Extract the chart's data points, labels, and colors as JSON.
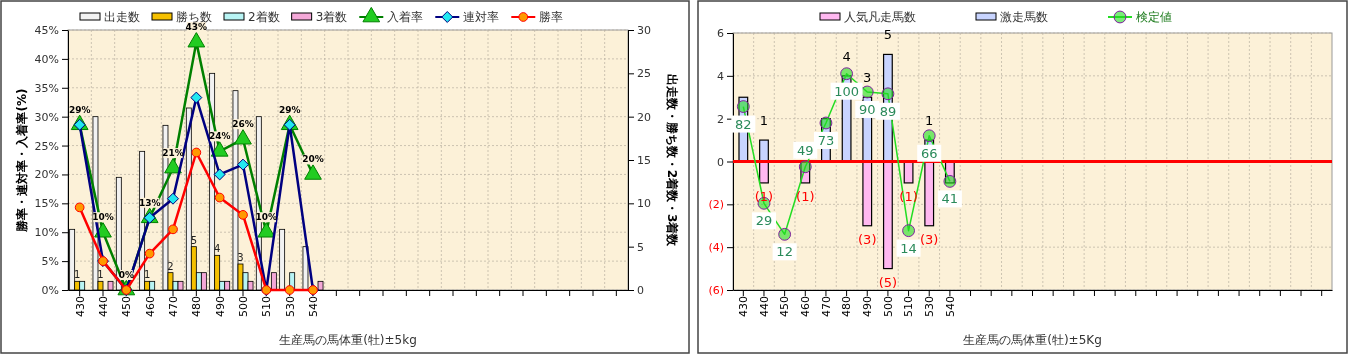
{
  "chart_data": [
    {
      "type": "bar",
      "xlabel": "生産馬の馬体重(牡)±5kg",
      "ylabel": "勝率・連対率・入着率(%)",
      "y2label": "出走数・勝ち数・2着数・3着数",
      "categories": [
        "430",
        "440",
        "450",
        "460",
        "470",
        "480",
        "490",
        "500",
        "510",
        "530",
        "540",
        null,
        null,
        null,
        null,
        null,
        null,
        null,
        null,
        null,
        null,
        null,
        null,
        null
      ],
      "ylim": [
        0,
        45
      ],
      "yticks": [
        {
          "value": 0,
          "label": "0%"
        },
        {
          "value": 5,
          "label": "5%"
        },
        {
          "value": 10,
          "label": "10%"
        },
        {
          "value": 15,
          "label": "15%"
        },
        {
          "value": 20,
          "label": "20%"
        },
        {
          "value": 25,
          "label": "25%"
        },
        {
          "value": 30,
          "label": "30%"
        },
        {
          "value": 35,
          "label": "35%"
        },
        {
          "value": 40,
          "label": "40%"
        },
        {
          "value": 45,
          "label": "45%"
        }
      ],
      "y2lim": [
        0,
        30
      ],
      "y2ticks": [
        0,
        5,
        10,
        15,
        20,
        25,
        30
      ],
      "grid": true,
      "legend": "top",
      "series": [
        {
          "name": "出走数",
          "color": "#f2f2f2",
          "axis": "y2",
          "values": [
            7,
            20,
            13,
            16,
            19,
            21,
            25,
            23,
            20,
            7,
            5,
            null,
            null,
            null,
            null,
            null,
            null,
            null,
            null,
            null,
            null,
            null,
            null,
            null
          ]
        },
        {
          "name": "勝ち数",
          "color": "#f5c000",
          "axis": "y2",
          "values": [
            1,
            1,
            0,
            1,
            2,
            5,
            4,
            3,
            0,
            0,
            0,
            null,
            null,
            null,
            null,
            null,
            null,
            null,
            null,
            null,
            null,
            null,
            null,
            null
          ],
          "value_labels": [
            "1",
            "1",
            null,
            "1",
            "2",
            "5",
            "4",
            "3",
            null,
            null,
            null,
            null,
            null,
            null,
            null,
            null,
            null,
            null,
            null,
            null,
            null,
            null,
            null,
            null
          ]
        },
        {
          "name": "2着数",
          "color": "#b8f4f4",
          "axis": "y2",
          "values": [
            1,
            0,
            0,
            1,
            1,
            2,
            1,
            2,
            0,
            2,
            0,
            null,
            null,
            null,
            null,
            null,
            null,
            null,
            null,
            null,
            null,
            null,
            null,
            null
          ]
        },
        {
          "name": "3着数",
          "color": "#f4a8d8",
          "axis": "y2",
          "values": [
            0,
            1,
            0,
            0,
            1,
            2,
            1,
            1,
            2,
            0,
            1,
            null,
            null,
            null,
            null,
            null,
            null,
            null,
            null,
            null,
            null,
            null,
            null,
            null
          ]
        },
        {
          "name": "入着率",
          "type": "line",
          "color": "#008000",
          "marker": "triangle",
          "values": [
            28.6,
            10,
            0,
            12.5,
            21.1,
            42.9,
            24,
            26.1,
            10,
            28.6,
            20,
            null,
            null,
            null,
            null,
            null,
            null,
            null,
            null,
            null,
            null,
            null,
            null,
            null
          ],
          "value_labels": [
            "29%",
            "10%",
            "0%",
            "13%",
            "21%",
            "43%",
            "24%",
            "26%",
            "10%",
            "29%",
            "20%",
            null,
            null,
            null,
            null,
            null,
            null,
            null,
            null,
            null,
            null,
            null,
            null,
            null
          ]
        },
        {
          "name": "連対率",
          "type": "line",
          "color": "#000080",
          "marker": "diamond",
          "values": [
            28.6,
            5,
            0,
            12.5,
            15.8,
            33.3,
            20,
            21.7,
            0,
            28.6,
            0,
            null,
            null,
            null,
            null,
            null,
            null,
            null,
            null,
            null,
            null,
            null,
            null,
            null
          ]
        },
        {
          "name": "勝率",
          "type": "line",
          "color": "#ff0000",
          "marker": "circle",
          "values": [
            14.3,
            5,
            0,
            6.3,
            10.5,
            23.8,
            16,
            13,
            0,
            0,
            0,
            null,
            null,
            null,
            null,
            null,
            null,
            null,
            null,
            null,
            null,
            null,
            null,
            null
          ]
        }
      ]
    },
    {
      "type": "bar",
      "xlabel": "生産馬の馬体重(牡)±5Kg",
      "stacked": true,
      "categories": [
        "430",
        "440",
        "450",
        "460",
        "470",
        "480",
        "490",
        "500",
        "510",
        "530",
        "540",
        null,
        null,
        null,
        null,
        null,
        null,
        null,
        null,
        null,
        null,
        null,
        null,
        null,
        null,
        null,
        null,
        null,
        null
      ],
      "ylim": [
        -6,
        6
      ],
      "yticks": [
        {
          "value": -6,
          "label": "(6)"
        },
        {
          "value": -4,
          "label": "(4)"
        },
        {
          "value": -2,
          "label": "(2)"
        },
        0,
        2,
        4,
        6
      ],
      "y2lim": [
        -18.5,
        122.3
      ],
      "grid": true,
      "legend": "top",
      "ref_lines": [
        {
          "axis": "y",
          "value": 0,
          "color": "#ff0000"
        }
      ],
      "series": [
        {
          "name": "人気凡走馬数",
          "color": "#ffb8f0",
          "values": [
            0,
            -1,
            0,
            -1,
            0,
            0,
            -3,
            -5,
            -1,
            -3,
            -1,
            null,
            null,
            null,
            null,
            null,
            null,
            null,
            null,
            null,
            null,
            null,
            null,
            null,
            null,
            null,
            null,
            null,
            null
          ],
          "value_labels": [
            null,
            "(1)",
            null,
            "(1)",
            null,
            null,
            "(3)",
            "(5)",
            "(1)",
            "(3)",
            null,
            null,
            null,
            null,
            null,
            null,
            null,
            null,
            null,
            null,
            null,
            null,
            null,
            null,
            null,
            null,
            null,
            null,
            null
          ]
        },
        {
          "name": "激走馬数",
          "color": "#c8d4ff",
          "values": [
            3,
            1,
            0,
            0,
            2,
            4,
            3,
            5,
            0,
            1,
            0,
            null,
            null,
            null,
            null,
            null,
            null,
            null,
            null,
            null,
            null,
            null,
            null,
            null,
            null,
            null,
            null,
            null,
            null
          ],
          "value_labels": [
            null,
            "1",
            null,
            null,
            null,
            "4",
            "3",
            "5",
            null,
            "1",
            null,
            null,
            null,
            null,
            null,
            null,
            null,
            null,
            null,
            null,
            null,
            null,
            null,
            null,
            null,
            null,
            null,
            null,
            null
          ]
        },
        {
          "name": "検定値",
          "type": "line",
          "axis": "y2",
          "color": "#22dd22",
          "marker": "circle",
          "values": [
            82,
            29,
            12,
            49,
            73,
            100,
            90,
            89,
            14,
            66,
            41,
            null,
            null,
            null,
            null,
            null,
            null,
            null,
            null,
            null,
            null,
            null,
            null,
            null,
            null,
            null,
            null,
            null,
            null
          ],
          "value_labels": [
            "82",
            "29",
            "12",
            "49",
            "73",
            "100",
            "90",
            "89",
            "14",
            "66",
            "41",
            null,
            null,
            null,
            null,
            null,
            null,
            null,
            null,
            null,
            null,
            null,
            null,
            null,
            null,
            null,
            null,
            null,
            null
          ]
        }
      ]
    }
  ]
}
